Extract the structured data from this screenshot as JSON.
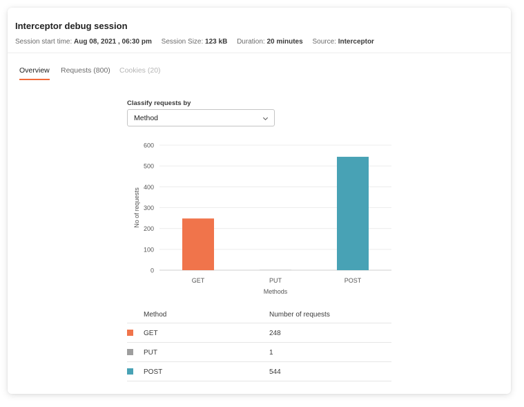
{
  "header": {
    "title": "Interceptor debug session",
    "meta": [
      {
        "label": "Session start time:",
        "value": "Aug 08, 2021 , 06:30 pm"
      },
      {
        "label": "Session Size:",
        "value": "123 kB"
      },
      {
        "label": "Duration:",
        "value": "20 minutes"
      },
      {
        "label": "Source:",
        "value": "Interceptor"
      }
    ]
  },
  "tabs": [
    {
      "label": "Overview",
      "state": "active"
    },
    {
      "label": "Requests (800)",
      "state": "normal"
    },
    {
      "label": "Cookies (20)",
      "state": "disabled"
    }
  ],
  "classify": {
    "label": "Classify requests by",
    "selected": "Method",
    "icon": "chevron-down-icon"
  },
  "chart_data": {
    "type": "bar",
    "categories": [
      "GET",
      "PUT",
      "POST"
    ],
    "values": [
      248,
      1,
      544
    ],
    "colors": [
      "#f0744b",
      "#9e9e9e",
      "#48a2b5"
    ],
    "xlabel": "Methods",
    "ylabel": "No of requests",
    "ylim": [
      0,
      600
    ],
    "yticks": [
      0,
      100,
      200,
      300,
      400,
      500,
      600
    ],
    "grid": true
  },
  "table": {
    "headers": [
      "Method",
      "Number of requests"
    ],
    "rows": [
      {
        "method": "GET",
        "count": "248",
        "color": "#f0744b"
      },
      {
        "method": "PUT",
        "count": "1",
        "color": "#9e9e9e"
      },
      {
        "method": "POST",
        "count": "544",
        "color": "#48a2b5"
      }
    ]
  }
}
